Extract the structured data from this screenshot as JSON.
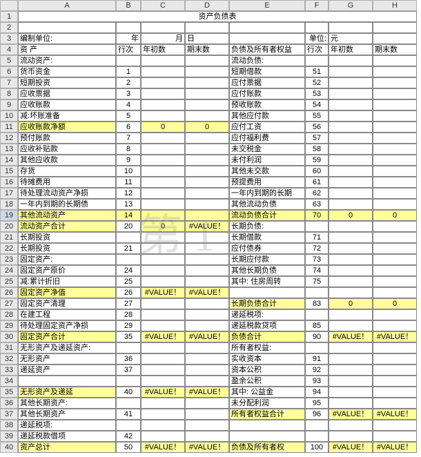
{
  "watermark": "第 1",
  "columns": [
    "",
    "A",
    "B",
    "C",
    "D",
    "E",
    "F",
    "G",
    "H"
  ],
  "title": "资产负债表",
  "header_row3": {
    "a": "编制单位:",
    "bc": "年",
    "c": "月",
    "d": "日",
    "fg": "单位:",
    "g": "元"
  },
  "header_row4": {
    "a": "资    产",
    "b": "行次",
    "c": "年初数",
    "d": "期末数",
    "e": "负债及所有者权益",
    "f": "行次",
    "g": "年初数",
    "h": "期末数"
  },
  "rows": [
    {
      "n": 5,
      "a": "流动资产:",
      "b": "",
      "c": "",
      "d": "",
      "e": "流动负债:",
      "f": "",
      "g": "",
      "h": ""
    },
    {
      "n": 6,
      "a": "  货币资金",
      "b": "1",
      "c": "",
      "d": "",
      "e": "    短期借款",
      "f": "51",
      "g": "",
      "h": ""
    },
    {
      "n": 7,
      "a": "  短期投资",
      "b": "2",
      "c": "",
      "d": "",
      "e": "    应付票据",
      "f": "52",
      "g": "",
      "h": ""
    },
    {
      "n": 8,
      "a": "  应收票据",
      "b": "3",
      "c": "",
      "d": "",
      "e": "    应付账款",
      "f": "53",
      "g": "",
      "h": ""
    },
    {
      "n": 9,
      "a": "  应收账款",
      "b": "4",
      "c": "",
      "d": "",
      "e": "    预收账款",
      "f": "54",
      "g": "",
      "h": ""
    },
    {
      "n": 10,
      "a": "     减:坏账准备",
      "b": "5",
      "c": "",
      "d": "",
      "e": "    其他应付款",
      "f": "55",
      "g": "",
      "h": ""
    },
    {
      "n": 11,
      "hl": {
        "a": true,
        "c": true,
        "d": true
      },
      "a": "  应收账款净额",
      "b": "6",
      "c": "0",
      "d": "0",
      "e": "    应付工资",
      "f": "56",
      "g": "",
      "h": ""
    },
    {
      "n": 12,
      "a": "  预付账款",
      "b": "7",
      "c": "",
      "d": "",
      "e": "    应付福利费",
      "f": "57",
      "g": "",
      "h": ""
    },
    {
      "n": 13,
      "a": "  应收补贴款",
      "b": "8",
      "c": "",
      "d": "",
      "e": "   未交税金",
      "f": "58",
      "g": "",
      "h": ""
    },
    {
      "n": 14,
      "a": "  其他应收款",
      "b": "9",
      "c": "",
      "d": "",
      "e": "   未付利润",
      "f": "59",
      "g": "",
      "h": ""
    },
    {
      "n": 15,
      "a": "  存货",
      "b": "10",
      "c": "",
      "d": "",
      "e": "    其他未交款",
      "f": "60",
      "g": "",
      "h": ""
    },
    {
      "n": 16,
      "a": "  待摊费用",
      "b": "11",
      "c": "",
      "d": "",
      "e": "    预提费用",
      "f": "61",
      "g": "",
      "h": ""
    },
    {
      "n": 17,
      "a": "  待处理流动资产净损",
      "b": "12",
      "c": "",
      "d": "",
      "e": "    一年内到期的长期",
      "f": "62",
      "g": "",
      "h": ""
    },
    {
      "n": 18,
      "a": "  一年内到期的长期债",
      "b": "13",
      "c": "",
      "d": "",
      "e": "    其他流动负债",
      "f": "63",
      "g": "",
      "h": ""
    },
    {
      "n": 19,
      "rsel": true,
      "a": "  其他流动资产",
      "b": "14",
      "c": "",
      "d": "",
      "hl": {
        "e": true,
        "g": true,
        "h": true
      },
      "e": "   流动负债合计",
      "f": "70",
      "g": "0",
      "h": "0"
    },
    {
      "n": 20,
      "hl": {
        "a": true,
        "c": true,
        "d": true
      },
      "a": "    流动资产合计",
      "b": "20",
      "c": "0",
      "d": "#VALUE！",
      "e": "长期负债:",
      "f": "",
      "g": "",
      "h": ""
    },
    {
      "n": 21,
      "a": "长期投资",
      "b": "",
      "c": "",
      "d": "",
      "e": "    长期借款",
      "f": "71",
      "g": "",
      "h": ""
    },
    {
      "n": 22,
      "a": "    长期投资",
      "b": "21",
      "c": "",
      "d": "",
      "e": "    应付债券",
      "f": "72",
      "g": "",
      "h": ""
    },
    {
      "n": 23,
      "a": "固定资产:",
      "b": "",
      "c": "",
      "d": "",
      "e": "    长期应付款",
      "f": "73",
      "g": "",
      "h": ""
    },
    {
      "n": 24,
      "a": "    固定资产原价",
      "b": "24",
      "c": "",
      "d": "",
      "e": "    其他长期负债",
      "f": "74",
      "g": "",
      "h": ""
    },
    {
      "n": 25,
      "a": "     减:累计折旧",
      "b": "25",
      "c": "",
      "d": "",
      "e": "     其中: 住房周转",
      "f": "75",
      "g": "",
      "h": ""
    },
    {
      "n": 26,
      "hl": {
        "a": true,
        "c": true,
        "d": true
      },
      "a": "    固定资产净值",
      "b": "26",
      "c": "#VALUE！",
      "d": "#VALUE！",
      "e": "",
      "f": "",
      "g": "",
      "h": ""
    },
    {
      "n": 27,
      "a": "    固定资产清理",
      "b": "27",
      "c": "",
      "d": "",
      "hl": {
        "e": true,
        "g": true,
        "h": true
      },
      "e": "    长期负债合计",
      "f": "83",
      "g": "0",
      "h": "0"
    },
    {
      "n": 28,
      "a": "    在建工程",
      "b": "28",
      "c": "",
      "d": "",
      "e": "递延税项:",
      "f": "",
      "g": "",
      "h": ""
    },
    {
      "n": 29,
      "a": "  待处理固定资产净损",
      "b": "29",
      "c": "",
      "d": "",
      "e": "    递延税款贷项",
      "f": "85",
      "g": "",
      "h": ""
    },
    {
      "n": 30,
      "hl": {
        "a": true,
        "c": true,
        "d": true,
        "e": true,
        "g": true,
        "h": true
      },
      "a": "    固定资产合计",
      "b": "35",
      "c": "#VALUE！",
      "d": "#VALUE！",
      "e": "    负债合计",
      "f": "90",
      "g": "#VALUE！",
      "h": "#VALUE！"
    },
    {
      "n": 31,
      "a": "无形资产及递延资产:",
      "b": "",
      "c": "",
      "d": "",
      "e": "所有者权益:",
      "f": "",
      "g": "",
      "h": ""
    },
    {
      "n": 32,
      "a": "    无形资产",
      "b": "36",
      "c": "",
      "d": "",
      "e": "    实收资本",
      "f": "91",
      "g": "",
      "h": ""
    },
    {
      "n": 33,
      "a": "    递延资产",
      "b": "37",
      "c": "",
      "d": "",
      "e": "    资本公积",
      "f": "92",
      "g": "",
      "h": ""
    },
    {
      "n": 34,
      "a": "",
      "b": "",
      "c": "",
      "d": "",
      "e": "    盈余公积",
      "f": "93",
      "g": "",
      "h": ""
    },
    {
      "n": 35,
      "hl": {
        "a": true,
        "c": true,
        "d": true
      },
      "a": "无形资产及递延",
      "b": "40",
      "c": "#VALUE！",
      "d": "#VALUE！",
      "e": "     其中:  公益金",
      "f": "94",
      "g": "",
      "h": ""
    },
    {
      "n": 36,
      "a": "其他长期资产:",
      "b": "",
      "c": "",
      "d": "",
      "e": "   未分配利润",
      "f": "95",
      "g": "",
      "h": ""
    },
    {
      "n": 37,
      "a": "    其他长期资产",
      "b": "41",
      "c": "",
      "d": "",
      "hl": {
        "e": true,
        "g": true,
        "h": true
      },
      "e": "   所有者权益合计",
      "f": "96",
      "g": "#VALUE！",
      "h": "#VALUE！"
    },
    {
      "n": 38,
      "a": "递延税项:",
      "b": "",
      "c": "",
      "d": "",
      "e": "",
      "f": "",
      "g": "",
      "h": ""
    },
    {
      "n": 39,
      "a": "    递延税款借项",
      "b": "42",
      "c": "",
      "d": "",
      "e": "",
      "f": "",
      "g": "",
      "h": ""
    },
    {
      "n": 40,
      "hl": {
        "a": true,
        "c": true,
        "d": true,
        "e": true,
        "g": true,
        "h": true
      },
      "a": "       资产总计",
      "b": "50",
      "c": "#VALUE！",
      "d": "#VALUE！",
      "e": "负债及所有者权",
      "f": "100",
      "g": "#VALUE！",
      "h": "#VALUE！"
    }
  ]
}
